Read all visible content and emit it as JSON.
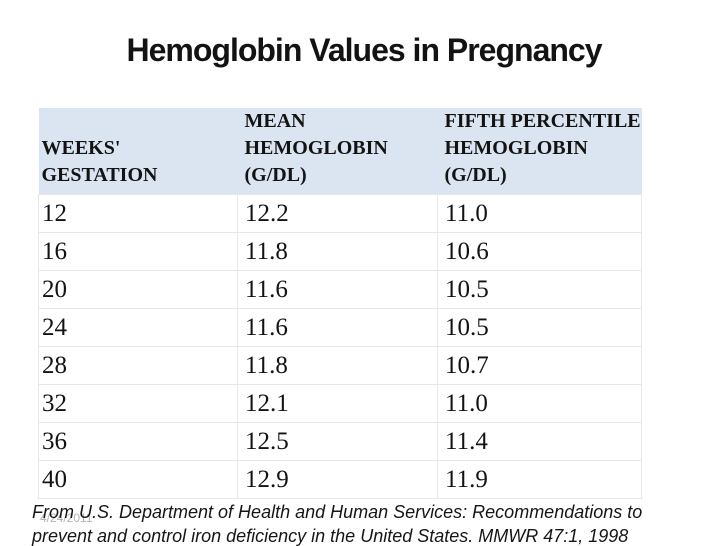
{
  "slide": {
    "title": "Hemoglobin Values in Pregnancy",
    "date_stamp": "4/24/2011",
    "citation": [
      "From U.S. Department of Health and Human Services: Recommendations to",
      "prevent and control iron deficiency in the United States. MMWR 47:1, 1998"
    ]
  },
  "table": {
    "columns": [
      {
        "lines": [
          "WEEKS'",
          "GESTATION"
        ]
      },
      {
        "lines": [
          "MEAN",
          "HEMOGLOBIN",
          "(G/DL)"
        ]
      },
      {
        "lines": [
          "FIFTH PERCENTILE",
          "HEMOGLOBIN",
          "(G/DL)"
        ]
      }
    ],
    "rows": [
      [
        "12",
        "12.2",
        "11.0"
      ],
      [
        "16",
        "11.8",
        "10.6"
      ],
      [
        "20",
        "11.6",
        "10.5"
      ],
      [
        "24",
        "11.6",
        "10.5"
      ],
      [
        "28",
        "11.8",
        "10.7"
      ],
      [
        "32",
        "12.1",
        "11.0"
      ],
      [
        "36",
        "12.5",
        "11.4"
      ],
      [
        "40",
        "12.9",
        "11.9"
      ]
    ]
  },
  "colors": {
    "header_bg": "#dbe5f1",
    "grid_line": "#e7e7e7",
    "text": "#131313",
    "date_stamp_gray": "#b2b2b2",
    "background": "#ffffff"
  }
}
